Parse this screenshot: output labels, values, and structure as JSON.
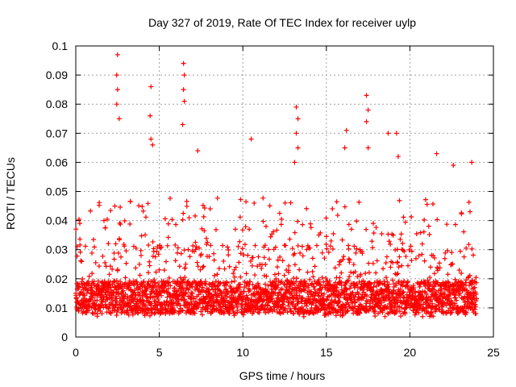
{
  "chart_data": {
    "type": "scatter",
    "title": "Day 327 of 2019, Rate Of TEC Index for receiver uylp",
    "xlabel": "GPS time / hours",
    "ylabel": "ROTI / TECUs",
    "xlim": [
      0,
      25
    ],
    "ylim": [
      0,
      0.1
    ],
    "xticks": [
      0,
      5,
      10,
      15,
      20,
      25
    ],
    "xtick_labels": [
      "0",
      "5",
      "10",
      "15",
      "20",
      "25"
    ],
    "yticks": [
      0,
      0.01,
      0.02,
      0.03,
      0.04,
      0.05,
      0.06,
      0.07,
      0.08,
      0.09,
      0.1
    ],
    "ytick_labels": [
      "0",
      "0.01",
      "0.02",
      "0.03",
      "0.04",
      "0.05",
      "0.06",
      "0.07",
      "0.08",
      "0.09",
      "0.1"
    ],
    "grid": true,
    "marker": "+",
    "color": "#ff0000",
    "data_range_hours": [
      0,
      24
    ],
    "series": [
      {
        "name": "ROTI",
        "baseline_range": [
          0.005,
          0.03
        ],
        "peaks": [
          {
            "x": 2.5,
            "y": 0.097
          },
          {
            "x": 2.45,
            "y": 0.09
          },
          {
            "x": 2.5,
            "y": 0.085
          },
          {
            "x": 2.45,
            "y": 0.08
          },
          {
            "x": 2.6,
            "y": 0.075
          },
          {
            "x": 4.5,
            "y": 0.086
          },
          {
            "x": 4.45,
            "y": 0.076
          },
          {
            "x": 4.5,
            "y": 0.068
          },
          {
            "x": 4.6,
            "y": 0.066
          },
          {
            "x": 6.45,
            "y": 0.094
          },
          {
            "x": 6.5,
            "y": 0.09
          },
          {
            "x": 6.45,
            "y": 0.085
          },
          {
            "x": 6.5,
            "y": 0.081
          },
          {
            "x": 6.4,
            "y": 0.073
          },
          {
            "x": 7.3,
            "y": 0.064
          },
          {
            "x": 10.5,
            "y": 0.068
          },
          {
            "x": 13.2,
            "y": 0.079
          },
          {
            "x": 13.3,
            "y": 0.075
          },
          {
            "x": 13.2,
            "y": 0.07
          },
          {
            "x": 13.3,
            "y": 0.065
          },
          {
            "x": 13.1,
            "y": 0.06
          },
          {
            "x": 16.2,
            "y": 0.071
          },
          {
            "x": 16.1,
            "y": 0.065
          },
          {
            "x": 17.4,
            "y": 0.083
          },
          {
            "x": 17.5,
            "y": 0.078
          },
          {
            "x": 17.4,
            "y": 0.074
          },
          {
            "x": 17.5,
            "y": 0.065
          },
          {
            "x": 18.7,
            "y": 0.07
          },
          {
            "x": 19.2,
            "y": 0.07
          },
          {
            "x": 19.3,
            "y": 0.062
          },
          {
            "x": 21.6,
            "y": 0.063
          },
          {
            "x": 22.6,
            "y": 0.059
          },
          {
            "x": 23.7,
            "y": 0.06
          }
        ]
      }
    ]
  }
}
